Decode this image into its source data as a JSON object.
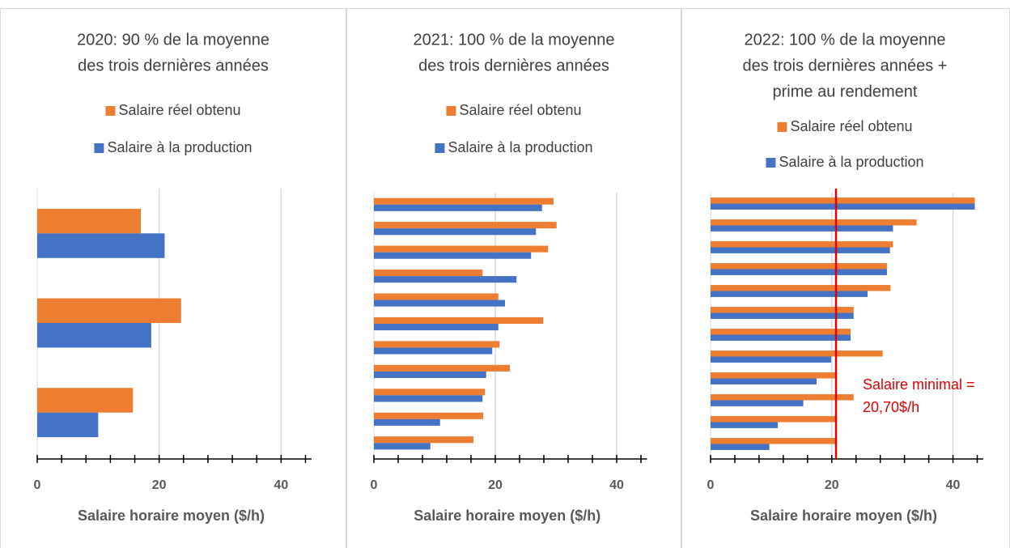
{
  "chart_data": [
    {
      "type": "bar",
      "orientation": "horizontal",
      "title": [
        "2020: 90 % de la moyenne",
        "des trois dernières années"
      ],
      "xlabel": "Salaire horaire moyen ($/h)",
      "categories": [
        null,
        null,
        null
      ],
      "series": [
        {
          "name": "Salaire réel obtenu",
          "color": "#ed7d31",
          "values": [
            17.0,
            23.6,
            15.7
          ]
        },
        {
          "name": "Salaire à la production",
          "color": "#4472c4",
          "values": [
            20.9,
            18.7,
            10.0
          ]
        }
      ],
      "xlim": [
        0,
        45
      ],
      "xticks": [
        0,
        20,
        40
      ],
      "minor_xticks": [
        4,
        8,
        12,
        16,
        24,
        28,
        32,
        36,
        44
      ],
      "grid": true
    },
    {
      "type": "bar",
      "orientation": "horizontal",
      "title": [
        "2021: 100 % de la moyenne",
        "des trois dernières années"
      ],
      "xlabel": "Salaire horaire moyen ($/h)",
      "categories": [
        null,
        null,
        null,
        null,
        null,
        null,
        null,
        null,
        null,
        null,
        null
      ],
      "series": [
        {
          "name": "Salaire réel obtenu",
          "color": "#ed7d31",
          "values": [
            29.6,
            30.1,
            28.7,
            17.9,
            20.5,
            27.9,
            20.7,
            22.4,
            18.3,
            18.0,
            16.4
          ]
        },
        {
          "name": "Salaire à la production",
          "color": "#4472c4",
          "values": [
            27.7,
            26.7,
            25.9,
            23.5,
            21.6,
            20.5,
            19.5,
            18.5,
            17.9,
            10.9,
            9.3
          ]
        }
      ],
      "xlim": [
        0,
        45
      ],
      "xticks": [
        0,
        20,
        40
      ],
      "minor_xticks": [
        4,
        8,
        12,
        16,
        24,
        28,
        32,
        36,
        44
      ],
      "grid": true
    },
    {
      "type": "bar",
      "orientation": "horizontal",
      "title": [
        "2022: 100 % de la moyenne",
        "des trois dernières années +",
        "prime au rendement"
      ],
      "xlabel": "Salaire horaire moyen ($/h)",
      "categories": [
        null,
        null,
        null,
        null,
        null,
        null,
        null,
        null,
        null,
        null,
        null,
        null
      ],
      "series": [
        {
          "name": "Salaire réel obtenu",
          "color": "#ed7d31",
          "values": [
            43.6,
            34.0,
            30.1,
            29.1,
            29.7,
            23.6,
            23.1,
            28.4,
            20.7,
            23.6,
            20.7,
            20.7
          ]
        },
        {
          "name": "Salaire à la production",
          "color": "#4472c4",
          "values": [
            43.6,
            30.1,
            29.6,
            29.1,
            25.9,
            23.6,
            23.1,
            19.9,
            17.5,
            15.3,
            11.1,
            9.7
          ]
        }
      ],
      "xlim": [
        0,
        45
      ],
      "xticks": [
        0,
        20,
        40
      ],
      "minor_xticks": [
        4,
        8,
        12,
        16,
        24,
        28,
        32,
        36,
        44
      ],
      "grid": true,
      "reference_line": {
        "value": 20.7,
        "color": "#e00000",
        "label": [
          "Salaire minimal =",
          "20,70$/h"
        ]
      }
    }
  ]
}
